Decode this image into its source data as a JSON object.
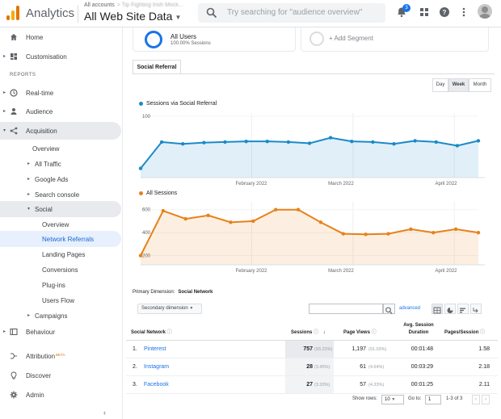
{
  "topbar": {
    "app_name": "Analytics",
    "accounts_label": "All accounts",
    "account_path": "> Tip Fighting Irish Mock...",
    "view_name": "All Web Site Data",
    "search_placeholder": "Try searching for \"audience overview\"",
    "notification_count": "3"
  },
  "sidebar": {
    "home": "Home",
    "customisation": "Customisation",
    "reports_header": "REPORTS",
    "realtime": "Real-time",
    "audience": "Audience",
    "acquisition": "Acquisition",
    "overview": "Overview",
    "all_traffic": "All Traffic",
    "google_ads": "Google Ads",
    "search_console": "Search console",
    "social": "Social",
    "social_overview": "Overview",
    "network_referrals": "Network Referrals",
    "landing_pages": "Landing Pages",
    "conversions": "Conversions",
    "plugins": "Plug-ins",
    "users_flow": "Users Flow",
    "campaigns": "Campaigns",
    "behaviour": "Behaviour",
    "attribution": "Attribution",
    "attribution_badge": "BETA",
    "discover": "Discover",
    "admin": "Admin"
  },
  "segments": {
    "active_title": "All Users",
    "active_sub": "100.00% Sessions",
    "add_label": "+ Add Segment"
  },
  "tab_label": "Social Referral",
  "granularity": {
    "day": "Day",
    "week": "Week",
    "month": "Month",
    "selected": "Week"
  },
  "colors": {
    "blue": "#1a8ac9",
    "orange": "#e8811a",
    "accent": "#1a73e8"
  },
  "chart_data": [
    {
      "type": "line",
      "series": [
        {
          "name": "Sessions via Social Referral",
          "color": "#1a8ac9",
          "values": [
            15,
            58,
            55,
            57,
            58,
            59,
            59,
            58,
            56,
            65,
            59,
            58,
            55,
            60,
            58,
            52,
            60
          ]
        }
      ],
      "x_ticks": [
        "February 2022",
        "March 2022",
        "April 2022"
      ],
      "y_ticks": [
        "100"
      ],
      "ylim": [
        0,
        100
      ]
    },
    {
      "type": "line",
      "series": [
        {
          "name": "All Sessions",
          "color": "#e8811a",
          "values": [
            200,
            590,
            520,
            550,
            490,
            500,
            600,
            600,
            490,
            390,
            385,
            390,
            430,
            400,
            430,
            400
          ]
        }
      ],
      "x_ticks": [
        "February 2022",
        "March 2022",
        "April 2022"
      ],
      "y_ticks": [
        "600",
        "400",
        "200"
      ],
      "ylim": [
        120,
        640
      ]
    }
  ],
  "table": {
    "primary_dimension_label": "Primary Dimension:",
    "primary_dimension_value": "Social Network",
    "secondary_dimension": "Secondary dimension",
    "advanced": "advanced",
    "headers": {
      "network": "Social Network",
      "sessions": "Sessions",
      "pageviews": "Page Views",
      "duration": "Avg. Session Duration",
      "pps": "Pages/Session"
    },
    "rows": [
      {
        "rank": "1.",
        "network": "Pinterest",
        "sessions": "757",
        "sessions_pct": "(93.23%)",
        "pageviews": "1,197",
        "pageviews_pct": "(91.03%)",
        "duration": "00:01:48",
        "pps": "1.58"
      },
      {
        "rank": "2.",
        "network": "Instagram",
        "sessions": "28",
        "sessions_pct": "(3.45%)",
        "pageviews": "61",
        "pageviews_pct": "(4.64%)",
        "duration": "00:03:29",
        "pps": "2.18"
      },
      {
        "rank": "3.",
        "network": "Facebook",
        "sessions": "27",
        "sessions_pct": "(3.33%)",
        "pageviews": "57",
        "pageviews_pct": "(4.33%)",
        "duration": "00:01:25",
        "pps": "2.11"
      }
    ],
    "show_rows_label": "Show rows:",
    "show_rows_value": "10",
    "goto_label": "Go to:",
    "goto_value": "1",
    "range_label": "1-3 of 3"
  }
}
